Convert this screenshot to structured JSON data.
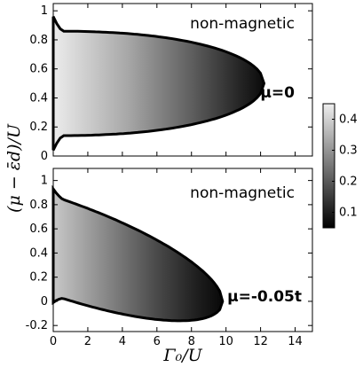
{
  "chart_data": {
    "type": "heatmap",
    "xlabel": "Γ₀/U",
    "ylabel": "(μ − ε̄d)/U",
    "x_range": [
      0,
      15
    ],
    "x_ticks": [
      "0",
      "2",
      "4",
      "6",
      "8",
      "10",
      "12",
      "14"
    ],
    "x_tick_values": [
      0,
      2,
      4,
      6,
      8,
      10,
      12,
      14
    ],
    "colorbar": {
      "range": [
        0.05,
        0.45
      ],
      "ticks": [
        "0.1",
        "0.2",
        "0.3",
        "0.4"
      ],
      "tick_values": [
        0.1,
        0.2,
        0.3,
        0.4
      ],
      "colormap": "gray: black low, white high"
    },
    "panels": [
      {
        "id": "top",
        "label": "non-magnetic",
        "condition": "μ=0",
        "y_range": [
          0,
          1.05
        ],
        "y_ticks": [
          "0",
          "0.2",
          "0.4",
          "0.6",
          "0.8",
          "1"
        ],
        "y_tick_values": [
          0,
          0.2,
          0.4,
          0.6,
          0.8,
          1.0
        ],
        "region": {
          "shape": "lobe symmetric about 0.5",
          "center": 0.5,
          "max_gamma": 12.2,
          "boundary_at_gamma_0": [
            0.04,
            0.96
          ],
          "boundary_at_gamma_2": [
            0.14,
            0.86
          ]
        },
        "value_at_gamma_0": 0.45,
        "value_at_boundary": 0.06
      },
      {
        "id": "bottom",
        "label": "non-magnetic",
        "condition": "μ=-0.05t",
        "y_range": [
          -0.25,
          1.1
        ],
        "y_ticks": [
          "-0.2",
          "0",
          "0.2",
          "0.4",
          "0.6",
          "0.8",
          "1"
        ],
        "y_tick_values": [
          -0.2,
          0,
          0.2,
          0.4,
          0.6,
          0.8,
          1.0
        ],
        "region": {
          "shape": "tilted lobe",
          "tip_gamma": 9.8,
          "tip_value": 0.0,
          "boundary_at_gamma_0": [
            0.03,
            0.95
          ]
        },
        "value_at_gamma_0": 0.42,
        "value_at_boundary": 0.06
      }
    ]
  }
}
